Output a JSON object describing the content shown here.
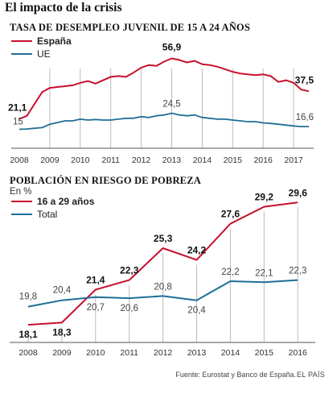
{
  "header": {
    "title": "El impacto de la crisis"
  },
  "footer": {
    "source": "Fuente: Eurostat y Banco de España.",
    "brand": "EL PAÍS"
  },
  "colors": {
    "red": "#c8102e",
    "blue": "#1f6f96",
    "grid": "#bbbbbb",
    "axis": "#555555"
  },
  "chart_data": [
    {
      "type": "line",
      "title": "TASA DE DESEMPLEO JUVENIL DE 15 A 24 AÑOS",
      "x_ticks": [
        "2008",
        "2009",
        "2010",
        "2011",
        "2012",
        "2013",
        "2014",
        "2015",
        "2016",
        "2017"
      ],
      "xlim": [
        2008.0,
        2017.5
      ],
      "ylim": [
        10,
        60
      ],
      "grid": "vertical",
      "legend": "top-left",
      "series": [
        {
          "name": "España",
          "color": "#c8102e",
          "x": [
            2008.0,
            2008.25,
            2008.5,
            2008.75,
            2009.0,
            2009.25,
            2009.5,
            2009.75,
            2010.0,
            2010.25,
            2010.5,
            2010.75,
            2011.0,
            2011.25,
            2011.5,
            2011.75,
            2012.0,
            2012.25,
            2012.5,
            2012.75,
            2013.0,
            2013.25,
            2013.5,
            2013.75,
            2014.0,
            2014.25,
            2014.5,
            2014.75,
            2015.0,
            2015.25,
            2015.5,
            2015.75,
            2016.0,
            2016.25,
            2016.5,
            2016.75,
            2017.0,
            2017.25,
            2017.5
          ],
          "values": [
            21.1,
            23.0,
            30.0,
            37.0,
            39.5,
            40.0,
            40.5,
            41.0,
            42.5,
            43.5,
            42.0,
            44.0,
            46.0,
            46.5,
            46.0,
            48.5,
            51.5,
            53.0,
            52.5,
            55.0,
            56.9,
            56.0,
            54.5,
            55.5,
            53.5,
            53.0,
            52.0,
            50.5,
            49.0,
            48.0,
            47.5,
            47.0,
            47.5,
            46.5,
            43.0,
            44.0,
            42.5,
            38.5,
            37.5
          ]
        },
        {
          "name": "UE",
          "color": "#1f6f96",
          "x": [
            2008.0,
            2008.25,
            2008.5,
            2008.75,
            2009.0,
            2009.25,
            2009.5,
            2009.75,
            2010.0,
            2010.25,
            2010.5,
            2010.75,
            2011.0,
            2011.25,
            2011.5,
            2011.75,
            2012.0,
            2012.25,
            2012.5,
            2012.75,
            2013.0,
            2013.25,
            2013.5,
            2013.75,
            2014.0,
            2014.25,
            2014.5,
            2014.75,
            2015.0,
            2015.25,
            2015.5,
            2015.75,
            2016.0,
            2016.25,
            2016.5,
            2016.75,
            2017.0,
            2017.25,
            2017.5
          ],
          "values": [
            15.0,
            15.2,
            15.6,
            16.0,
            18.0,
            19.0,
            20.0,
            20.0,
            21.0,
            20.5,
            20.8,
            20.5,
            20.5,
            21.0,
            21.5,
            21.5,
            22.5,
            22.0,
            23.0,
            23.5,
            24.5,
            23.5,
            23.0,
            23.5,
            22.0,
            21.5,
            21.0,
            21.0,
            20.5,
            20.0,
            19.5,
            19.5,
            18.8,
            18.5,
            18.0,
            17.5,
            17.0,
            16.6,
            16.6
          ]
        }
      ],
      "data_labels": [
        {
          "series": "España",
          "x": 2008.0,
          "value": 21.1,
          "text": "21,1"
        },
        {
          "series": "España",
          "x": 2013.0,
          "value": 56.9,
          "text": "56,9"
        },
        {
          "series": "España",
          "x": 2017.5,
          "value": 37.5,
          "text": "37,5"
        },
        {
          "series": "UE",
          "x": 2008.0,
          "value": 15.0,
          "text": "15"
        },
        {
          "series": "UE",
          "x": 2013.0,
          "value": 24.5,
          "text": "24,5"
        },
        {
          "series": "UE",
          "x": 2017.5,
          "value": 16.6,
          "text": "16,6"
        }
      ]
    },
    {
      "type": "line",
      "title": "POBLACIÓN EN RIESGO DE POBREZA",
      "unit": "En %",
      "categories": [
        "2008",
        "2009",
        "2010",
        "2011",
        "2012",
        "2013",
        "2014",
        "2015",
        "2016"
      ],
      "ylim": [
        15,
        30
      ],
      "grid": "vertical",
      "legend": "top-left",
      "series": [
        {
          "name": "16 a 29 años",
          "color": "#c8102e",
          "values": [
            18.1,
            18.3,
            21.4,
            22.3,
            25.3,
            24.2,
            27.6,
            29.2,
            29.6
          ],
          "labels": [
            "18,1",
            "18,3",
            "21,4",
            "22,3",
            "25,3",
            "24,2",
            "27,6",
            "29,2",
            "29,6"
          ]
        },
        {
          "name": "Total",
          "color": "#1f6f96",
          "values": [
            19.8,
            20.4,
            20.7,
            20.6,
            20.8,
            20.4,
            22.2,
            22.1,
            22.3
          ],
          "labels": [
            "19,8",
            "20,4",
            "20,7",
            "20,6",
            "20,8",
            "20,4",
            "22,2",
            "22,1",
            "22,3"
          ]
        }
      ]
    }
  ]
}
